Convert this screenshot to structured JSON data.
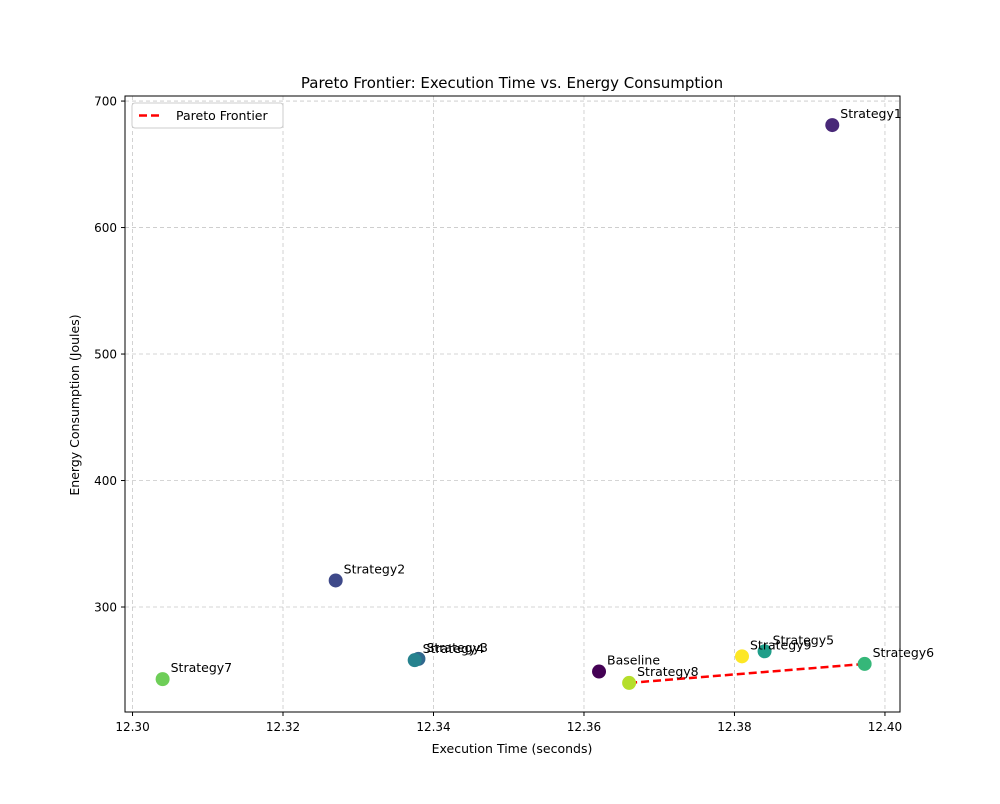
{
  "chart_data": {
    "type": "scatter",
    "title": "Pareto Frontier: Execution Time vs. Energy Consumption",
    "xlabel": "Execution Time (seconds)",
    "ylabel": "Energy Consumption (Joules)",
    "xlim": [
      12.299,
      12.402
    ],
    "ylim": [
      217,
      704
    ],
    "xticks": [
      "12.30",
      "12.32",
      "12.34",
      "12.36",
      "12.38",
      "12.40"
    ],
    "yticks": [
      "300",
      "400",
      "500",
      "600",
      "700"
    ],
    "grid": true,
    "legend": {
      "position": "top-left",
      "entries": [
        {
          "label": "Pareto Frontier",
          "color": "#ff0000",
          "style": "dashed"
        }
      ]
    },
    "points": [
      {
        "label": "Baseline",
        "x": 12.362,
        "y": 249,
        "color": "#440154"
      },
      {
        "label": "Strategy1",
        "x": 12.393,
        "y": 681,
        "color": "#482878"
      },
      {
        "label": "Strategy2",
        "x": 12.327,
        "y": 321,
        "color": "#3e4989"
      },
      {
        "label": "Strategy3",
        "x": 12.338,
        "y": 259,
        "color": "#31688e"
      },
      {
        "label": "Strategy4",
        "x": 12.3375,
        "y": 258,
        "color": "#26828e"
      },
      {
        "label": "Strategy5",
        "x": 12.384,
        "y": 265,
        "color": "#1f9e89"
      },
      {
        "label": "Strategy6",
        "x": 12.3973,
        "y": 255,
        "color": "#35b779"
      },
      {
        "label": "Strategy7",
        "x": 12.304,
        "y": 243,
        "color": "#6ece58"
      },
      {
        "label": "Strategy8",
        "x": 12.366,
        "y": 240,
        "color": "#b5de2b"
      },
      {
        "label": "Strategy9",
        "x": 12.381,
        "y": 261,
        "color": "#fde725"
      }
    ],
    "pareto_frontier": {
      "name": "Pareto Frontier",
      "color": "#ff0000",
      "x": [
        12.366,
        12.3973
      ],
      "y": [
        240,
        255
      ]
    }
  }
}
